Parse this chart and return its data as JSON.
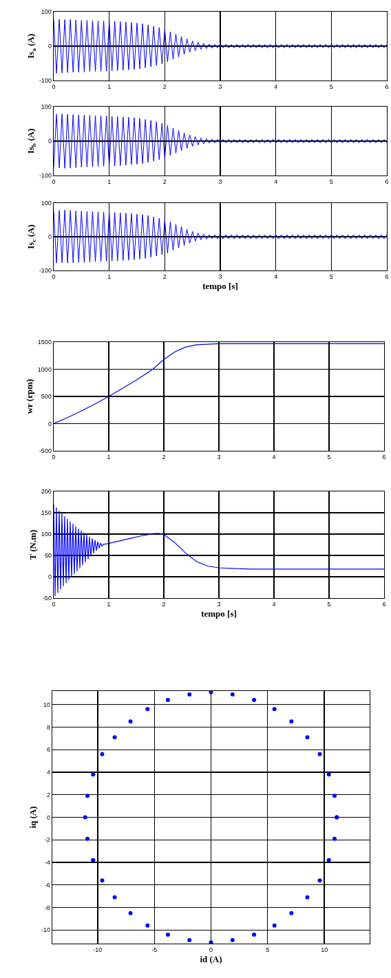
{
  "chart_data": [
    {
      "type": "line",
      "ylabel": "Is$_{a}$ (A)",
      "xlim": [
        0,
        6
      ],
      "ylim": [
        -100,
        100
      ],
      "xticks": [
        0,
        1,
        2,
        3,
        4,
        5,
        6
      ],
      "yticks": [
        -100,
        0,
        100
      ],
      "grid": true,
      "x": [
        0,
        0.05,
        0.1,
        0.15,
        0.2,
        0.25,
        0.3,
        0.35,
        0.4,
        0.45,
        0.5,
        0.55,
        0.6,
        0.65,
        0.7,
        0.75,
        0.8,
        0.85,
        0.9,
        0.95,
        1,
        1.05,
        1.1,
        1.15,
        1.2,
        1.25,
        1.3,
        1.35,
        1.4,
        1.45,
        1.5,
        1.55,
        1.6,
        1.65,
        1.7,
        1.75,
        1.8,
        1.85,
        1.9,
        1.95,
        2,
        2.05,
        2.1,
        2.15,
        2.2,
        2.25,
        2.3,
        2.35,
        2.4,
        2.45,
        2.5,
        2.55,
        2.6,
        2.65,
        2.7,
        2.75,
        2.8,
        2.85,
        2.9,
        2.95,
        3,
        3.05,
        3.1,
        3.15,
        3.2,
        3.25,
        3.3,
        3.35,
        3.4,
        3.45,
        3.5,
        3.55,
        3.6,
        3.65,
        3.7,
        3.75,
        3.8,
        3.85,
        3.9,
        3.95,
        4,
        4.05,
        4.1,
        4.15,
        4.2,
        4.25,
        4.3,
        4.35,
        4.4,
        4.45,
        4.5,
        4.55,
        4.6,
        4.65,
        4.7,
        4.75,
        4.8,
        4.85,
        4.9,
        4.95,
        5,
        5.05,
        5.1,
        5.15,
        5.2,
        5.25,
        5.3,
        5.35,
        5.4,
        5.45,
        5.5,
        5.55,
        5.6,
        5.65,
        5.7,
        5.75,
        5.8,
        5.85,
        5.9,
        5.95,
        6
      ],
      "series": [
        {
          "color": "#0000ff",
          "values": [
            78,
            -79,
            78,
            -78,
            77,
            -77,
            77,
            -76,
            76,
            -76,
            75,
            -75,
            75,
            -74,
            74,
            -74,
            74,
            -73,
            73,
            -73,
            73,
            -72,
            72,
            -71,
            71,
            -70,
            70,
            -69,
            68,
            -68,
            67,
            -66,
            65,
            -63,
            62,
            -60,
            58,
            -56,
            54,
            -52,
            50,
            -46,
            42,
            -38,
            35,
            -31,
            28,
            -24,
            21,
            -18,
            15,
            -13,
            11,
            -9,
            8,
            -7,
            6,
            -6,
            5,
            -5,
            5,
            -5,
            5,
            -5,
            5,
            -5,
            5,
            -5,
            5,
            -5,
            5,
            -5,
            5,
            -5,
            5,
            -5,
            5,
            -5,
            5,
            -5,
            5,
            -5,
            5,
            -5,
            5,
            -5,
            5,
            -5,
            5,
            -5,
            5,
            -5,
            5,
            -5,
            5,
            -5,
            5,
            -5,
            5,
            -5,
            5,
            -5,
            5,
            -5,
            5,
            -5,
            5,
            -5,
            5,
            -5,
            5,
            -5,
            5,
            -5,
            5,
            -5,
            5,
            -5,
            5,
            -5,
            5
          ]
        }
      ]
    },
    {
      "type": "line",
      "ylabel": "Is$_{b}$ (A)",
      "xlim": [
        0,
        6
      ],
      "ylim": [
        -100,
        100
      ],
      "xticks": [
        0,
        1,
        2,
        3,
        4,
        5,
        6
      ],
      "yticks": [
        -100,
        0,
        100
      ],
      "grid": true,
      "x": [
        0,
        0.05,
        0.1,
        0.15,
        0.2,
        0.25,
        0.3,
        0.35,
        0.4,
        0.45,
        0.5,
        0.55,
        0.6,
        0.65,
        0.7,
        0.75,
        0.8,
        0.85,
        0.9,
        0.95,
        1,
        1.05,
        1.1,
        1.15,
        1.2,
        1.25,
        1.3,
        1.35,
        1.4,
        1.45,
        1.5,
        1.55,
        1.6,
        1.65,
        1.7,
        1.75,
        1.8,
        1.85,
        1.9,
        1.95,
        2,
        2.05,
        2.1,
        2.15,
        2.2,
        2.25,
        2.3,
        2.35,
        2.4,
        2.45,
        2.5,
        2.55,
        2.6,
        2.65,
        2.7,
        2.75,
        2.8,
        2.85,
        2.9,
        2.95,
        3,
        3.05,
        3.1,
        3.15,
        3.2,
        3.25,
        3.3,
        3.35,
        3.4,
        3.45,
        3.5,
        3.55,
        3.6,
        3.65,
        3.7,
        3.75,
        3.8,
        3.85,
        3.9,
        3.95,
        4,
        4.05,
        4.1,
        4.15,
        4.2,
        4.25,
        4.3,
        4.35,
        4.4,
        4.45,
        4.5,
        4.55,
        4.6,
        4.65,
        4.7,
        4.75,
        4.8,
        4.85,
        4.9,
        4.95,
        5,
        5.05,
        5.1,
        5.15,
        5.2,
        5.25,
        5.3,
        5.35,
        5.4,
        5.45,
        5.5,
        5.55,
        5.6,
        5.65,
        5.7,
        5.75,
        5.8,
        5.85,
        5.9,
        5.95,
        6
      ],
      "series": [
        {
          "color": "#0000ff",
          "values": [
            -77,
            78,
            -78,
            79,
            -79,
            78,
            -78,
            77,
            -77,
            76,
            -76,
            76,
            -75,
            75,
            -75,
            74,
            -74,
            74,
            -73,
            73,
            -73,
            72,
            -72,
            71,
            -71,
            70,
            -70,
            69,
            -68,
            68,
            -67,
            66,
            -65,
            63,
            -62,
            60,
            -58,
            56,
            -54,
            52,
            -50,
            46,
            -42,
            38,
            -35,
            31,
            -28,
            24,
            -21,
            18,
            -15,
            13,
            -11,
            9,
            -8,
            7,
            -6,
            6,
            -5,
            5,
            -5,
            5,
            -5,
            5,
            -5,
            5,
            -5,
            5,
            -5,
            5,
            -5,
            5,
            -5,
            5,
            -5,
            5,
            -5,
            5,
            -5,
            5,
            -5,
            5,
            -5,
            5,
            -5,
            5,
            -5,
            5,
            -5,
            5,
            -5,
            5,
            -5,
            5,
            -5,
            5,
            -5,
            5,
            -5,
            5,
            -5,
            5,
            -5,
            5,
            -5,
            5,
            -5,
            5,
            -5,
            5,
            -5,
            5,
            -5,
            5,
            -5,
            5,
            -5,
            5,
            -5,
            5,
            -5
          ]
        }
      ]
    },
    {
      "type": "line",
      "ylabel": "Is$_{c}$ (A)",
      "xlabel": "tempo [s]",
      "xlim": [
        0,
        6
      ],
      "ylim": [
        -100,
        100
      ],
      "xticks": [
        0,
        1,
        2,
        3,
        4,
        5,
        6
      ],
      "yticks": [
        -100,
        0,
        100
      ],
      "grid": true,
      "x": [
        0,
        0.05,
        0.1,
        0.15,
        0.2,
        0.25,
        0.3,
        0.35,
        0.4,
        0.45,
        0.5,
        0.55,
        0.6,
        0.65,
        0.7,
        0.75,
        0.8,
        0.85,
        0.9,
        0.95,
        1,
        1.05,
        1.1,
        1.15,
        1.2,
        1.25,
        1.3,
        1.35,
        1.4,
        1.45,
        1.5,
        1.55,
        1.6,
        1.65,
        1.7,
        1.75,
        1.8,
        1.85,
        1.9,
        1.95,
        2,
        2.05,
        2.1,
        2.15,
        2.2,
        2.25,
        2.3,
        2.35,
        2.4,
        2.45,
        2.5,
        2.55,
        2.6,
        2.65,
        2.7,
        2.75,
        2.8,
        2.85,
        2.9,
        2.95,
        3,
        3.05,
        3.1,
        3.15,
        3.2,
        3.25,
        3.3,
        3.35,
        3.4,
        3.45,
        3.5,
        3.55,
        3.6,
        3.65,
        3.7,
        3.75,
        3.8,
        3.85,
        3.9,
        3.95,
        4,
        4.05,
        4.1,
        4.15,
        4.2,
        4.25,
        4.3,
        4.35,
        4.4,
        4.45,
        4.5,
        4.55,
        4.6,
        4.65,
        4.7,
        4.75,
        4.8,
        4.85,
        4.9,
        4.95,
        5,
        5.05,
        5.1,
        5.15,
        5.2,
        5.25,
        5.3,
        5.35,
        5.4,
        5.45,
        5.5,
        5.55,
        5.6,
        5.65,
        5.7,
        5.75,
        5.8,
        5.85,
        5.9,
        5.95,
        6
      ],
      "series": [
        {
          "color": "#0000ff",
          "values": [
            77,
            -78,
            78,
            -77,
            79,
            -78,
            78,
            -77,
            77,
            -76,
            76,
            -76,
            75,
            -75,
            75,
            -74,
            74,
            -74,
            73,
            -73,
            73,
            -72,
            72,
            -71,
            71,
            -70,
            70,
            -69,
            69,
            -68,
            67,
            -66,
            66,
            -64,
            63,
            -61,
            59,
            -57,
            55,
            -53,
            51,
            -48,
            44,
            -40,
            37,
            -33,
            30,
            -26,
            22,
            -19,
            16,
            -13,
            11,
            -9,
            8,
            -7,
            6,
            -6,
            6,
            -6,
            6,
            -6,
            6,
            -6,
            6,
            -6,
            6,
            -6,
            6,
            -6,
            6,
            -6,
            6,
            -6,
            6,
            -6,
            6,
            -6,
            6,
            -6,
            6,
            -6,
            6,
            -6,
            6,
            -6,
            6,
            -6,
            6,
            -6,
            6,
            -6,
            6,
            -6,
            6,
            -6,
            6,
            -6,
            6,
            -6,
            6,
            -6,
            6,
            -6,
            6,
            -6,
            6,
            -6,
            6,
            -6,
            6,
            -6,
            6,
            -6,
            6,
            -6,
            6,
            -6,
            6,
            -6,
            6
          ]
        }
      ]
    },
    {
      "type": "line",
      "ylabel": "wr (rpm)",
      "xlim": [
        0,
        6
      ],
      "ylim": [
        -500,
        1500
      ],
      "xticks": [
        0,
        1,
        2,
        3,
        4,
        5,
        6
      ],
      "yticks": [
        -500,
        0,
        500,
        1000,
        1500
      ],
      "grid": true,
      "x": [
        0,
        0.25,
        0.5,
        0.75,
        1,
        1.25,
        1.5,
        1.8,
        2,
        2.2,
        2.4,
        2.6,
        2.8,
        3,
        4,
        5,
        6
      ],
      "series": [
        {
          "color": "#0000ff",
          "values": [
            0,
            110,
            230,
            360,
            500,
            650,
            800,
            1000,
            1180,
            1320,
            1410,
            1450,
            1460,
            1470,
            1470,
            1470,
            1470
          ]
        }
      ]
    },
    {
      "type": "line",
      "ylabel": "T (N.m)",
      "xlabel": "tempo [s]",
      "xlim": [
        0,
        6
      ],
      "ylim": [
        -50,
        200
      ],
      "xticks": [
        0,
        1,
        2,
        3,
        4,
        5,
        6
      ],
      "yticks": [
        -50,
        0,
        50,
        100,
        150,
        200
      ],
      "grid": true,
      "x": [
        0,
        0.025,
        0.05,
        0.075,
        0.1,
        0.125,
        0.15,
        0.175,
        0.2,
        0.225,
        0.25,
        0.275,
        0.3,
        0.325,
        0.35,
        0.375,
        0.4,
        0.425,
        0.45,
        0.475,
        0.5,
        0.525,
        0.55,
        0.575,
        0.6,
        0.625,
        0.65,
        0.675,
        0.7,
        0.725,
        0.75,
        0.775,
        0.8,
        0.825,
        0.85,
        0.875,
        0.9,
        1,
        1.2,
        1.4,
        1.6,
        1.8,
        1.9,
        2,
        2.2,
        2.4,
        2.6,
        2.8,
        3,
        3.3,
        3.6,
        4,
        5,
        6
      ],
      "series": [
        {
          "color": "#0000ff",
          "values": [
            170,
            -45,
            162,
            -38,
            155,
            -30,
            148,
            -22,
            142,
            -15,
            136,
            -8,
            130,
            -1,
            124,
            6,
            118,
            13,
            113,
            20,
            108,
            27,
            103,
            34,
            98,
            41,
            94,
            48,
            90,
            55,
            86,
            61,
            82,
            67,
            79,
            72,
            76,
            78,
            84,
            90,
            96,
            101,
            102,
            99,
            80,
            55,
            35,
            25,
            21,
            19,
            18,
            18,
            18,
            18
          ]
        }
      ]
    },
    {
      "type": "scatter",
      "marker": "circle",
      "xlabel": "id (A)",
      "ylabel": "iq (A)",
      "xlim": [
        -14,
        14
      ],
      "ylim": [
        -11.2,
        11.2
      ],
      "xticks": [
        -10,
        -5,
        0,
        5,
        10
      ],
      "yticks": [
        -10,
        -8,
        -6,
        -4,
        -2,
        0,
        2,
        4,
        6,
        8,
        10
      ],
      "grid": true,
      "series": [
        {
          "color": "#0000ff",
          "x": [
            11.1,
            10.9,
            10.4,
            9.6,
            8.5,
            7.1,
            5.6,
            3.8,
            1.9,
            0,
            -1.9,
            -3.8,
            -5.6,
            -7.1,
            -8.5,
            -9.6,
            -10.4,
            -10.9,
            -11.1,
            -10.9,
            -10.4,
            -9.6,
            -8.5,
            -7.1,
            -5.6,
            -3.8,
            -1.9,
            0,
            1.9,
            3.8,
            5.6,
            7.1,
            8.5,
            9.6,
            10.4,
            10.9,
            11.1
          ],
          "values": [
            0,
            1.9,
            3.8,
            5.6,
            7.1,
            8.5,
            9.6,
            10.4,
            10.9,
            11.1,
            10.9,
            10.4,
            9.6,
            8.5,
            7.1,
            5.6,
            3.8,
            1.9,
            0,
            -1.9,
            -3.8,
            -5.6,
            -7.1,
            -8.5,
            -9.6,
            -10.4,
            -10.9,
            -11.1,
            -10.9,
            -10.4,
            -9.6,
            -8.5,
            -7.1,
            -5.6,
            -3.8,
            -1.9,
            0
          ]
        }
      ]
    }
  ]
}
